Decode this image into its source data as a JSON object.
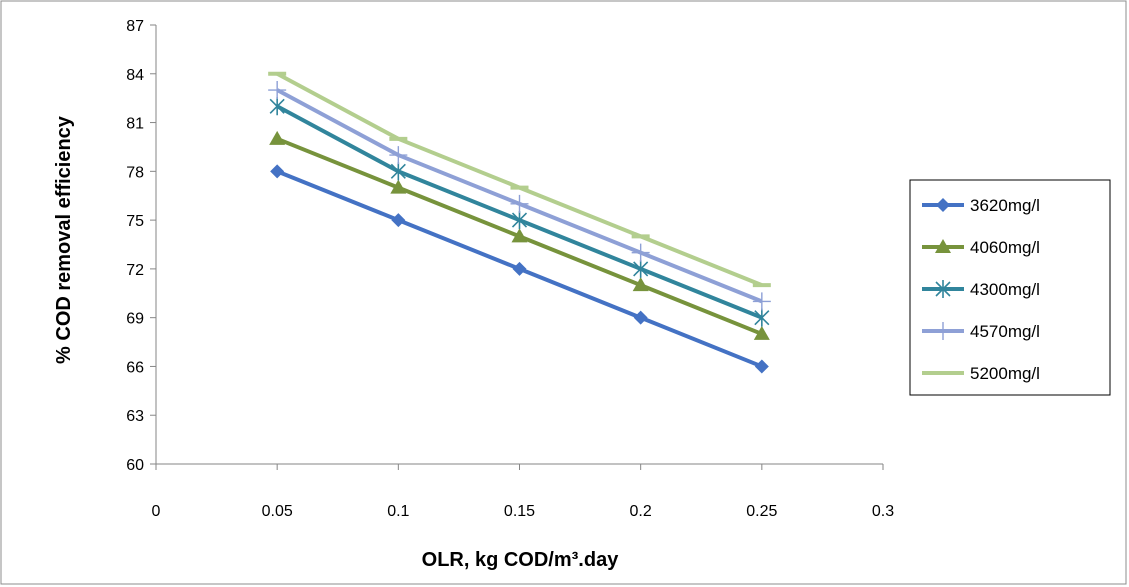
{
  "chart_data": {
    "type": "line",
    "xlabel": "OLR, kg COD/m³.day",
    "ylabel": "% COD removal efficiency",
    "xlim": [
      0,
      0.3
    ],
    "ylim": [
      60,
      87
    ],
    "x_ticks": [
      "0",
      "0.05",
      "0.1",
      "0.15",
      "0.2",
      "0.25",
      "0.3"
    ],
    "y_ticks": [
      "60",
      "63",
      "66",
      "69",
      "72",
      "75",
      "78",
      "81",
      "84",
      "87"
    ],
    "grid": false,
    "legend_position": "right",
    "x": [
      0.05,
      0.1,
      0.15,
      0.2,
      0.25
    ],
    "series": [
      {
        "name": "3620mg/l",
        "color": "#4472C4",
        "marker": "diamond",
        "values": [
          78,
          75,
          72,
          69,
          66
        ]
      },
      {
        "name": "4060mg/l",
        "color": "#77933C",
        "marker": "triangle",
        "values": [
          80,
          77,
          74,
          71,
          68
        ]
      },
      {
        "name": "4300mg/l",
        "color": "#31859C",
        "marker": "asterisk",
        "values": [
          82,
          78,
          75,
          72,
          69
        ]
      },
      {
        "name": "4570mg/l",
        "color": "#8EA0D6",
        "marker": "plus",
        "values": [
          83,
          79,
          76,
          73,
          70
        ]
      },
      {
        "name": "5200mg/l",
        "color": "#B3CE8E",
        "marker": "dash",
        "values": [
          84,
          80,
          77,
          74,
          71
        ]
      }
    ]
  }
}
